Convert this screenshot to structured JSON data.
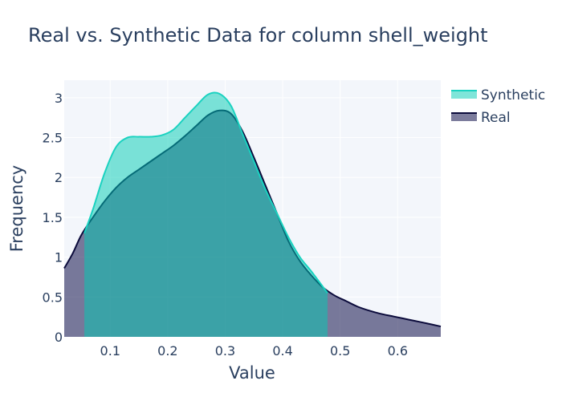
{
  "chart_data": {
    "type": "area",
    "title": "Real vs. Synthetic Data for column shell_weight",
    "xlabel": "Value",
    "ylabel": "Frequency",
    "xlim": [
      0.02,
      0.675
    ],
    "ylim": [
      0,
      3.22
    ],
    "xticks": [
      0.1,
      0.2,
      0.3,
      0.4,
      0.5,
      0.6
    ],
    "xtick_labels": [
      "0.1",
      "0.2",
      "0.3",
      "0.4",
      "0.5",
      "0.6"
    ],
    "yticks": [
      0,
      0.5,
      1,
      1.5,
      2,
      2.5,
      3
    ],
    "ytick_labels": [
      "0",
      "0.5",
      "1",
      "1.5",
      "2",
      "2.5",
      "3"
    ],
    "grid": true,
    "legend_position": "top-right",
    "series": [
      {
        "name": "Synthetic",
        "line_color": "#1ad2c0",
        "fill_color": "rgba(0,204,180,0.5)",
        "x": [
          0.055,
          0.07,
          0.09,
          0.11,
          0.13,
          0.15,
          0.17,
          0.19,
          0.21,
          0.23,
          0.25,
          0.27,
          0.29,
          0.31,
          0.33,
          0.35,
          0.37,
          0.39,
          0.41,
          0.43,
          0.45,
          0.478
        ],
        "y": [
          1.3,
          1.6,
          2.05,
          2.38,
          2.5,
          2.51,
          2.51,
          2.53,
          2.6,
          2.75,
          2.9,
          3.04,
          3.05,
          2.9,
          2.55,
          2.2,
          1.85,
          1.55,
          1.25,
          1.0,
          0.82,
          0.55
        ]
      },
      {
        "name": "Real",
        "line_color": "#0b0b3b",
        "fill_color": "rgba(36,36,90,0.6)",
        "x": [
          0.02,
          0.035,
          0.05,
          0.07,
          0.09,
          0.11,
          0.13,
          0.15,
          0.17,
          0.19,
          0.21,
          0.23,
          0.25,
          0.27,
          0.29,
          0.31,
          0.33,
          0.35,
          0.37,
          0.39,
          0.41,
          0.43,
          0.45,
          0.47,
          0.49,
          0.51,
          0.53,
          0.55,
          0.57,
          0.59,
          0.61,
          0.63,
          0.65,
          0.675
        ],
        "y": [
          0.86,
          1.05,
          1.28,
          1.5,
          1.7,
          1.87,
          2.0,
          2.1,
          2.2,
          2.3,
          2.4,
          2.52,
          2.65,
          2.78,
          2.84,
          2.8,
          2.58,
          2.25,
          1.9,
          1.55,
          1.2,
          0.95,
          0.77,
          0.62,
          0.52,
          0.45,
          0.38,
          0.33,
          0.29,
          0.26,
          0.23,
          0.2,
          0.17,
          0.13
        ]
      }
    ]
  }
}
